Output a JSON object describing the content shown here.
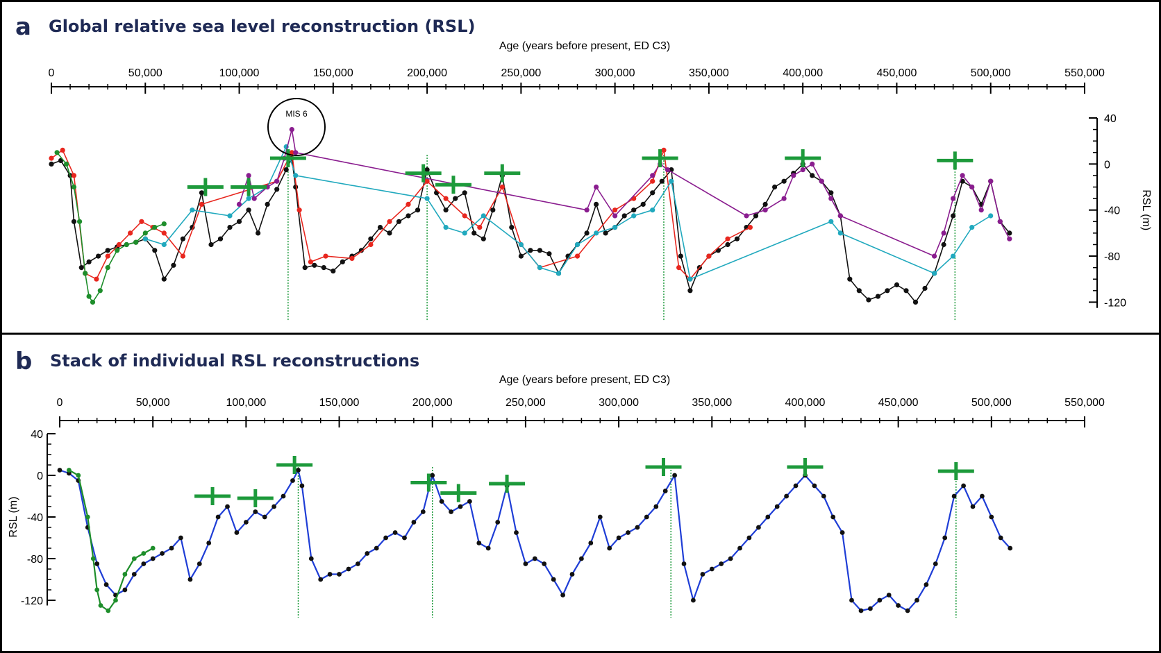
{
  "panels": {
    "a": {
      "letter": "a",
      "title": "Global relative sea level reconstruction (RSL)"
    },
    "b": {
      "letter": "b",
      "title": "Stack of individual RSL reconstructions"
    }
  },
  "colors": {
    "black": "#111111",
    "red": "#e8271f",
    "green": "#1e8e2b",
    "cyan": "#21a9be",
    "purple": "#8a1d8f",
    "blue": "#1f3ed6",
    "marker": "#1d9a3b",
    "title": "#1f2a55"
  },
  "chart_data": [
    {
      "type": "line",
      "title": "Global relative sea level reconstruction (RSL)",
      "xlabel": "Age (years before present, ED C3)",
      "ylabel": "RSL (m)",
      "xlim": [
        0,
        550000
      ],
      "ylim": [
        -130,
        40
      ],
      "x_ticks": [
        "0",
        "50,000",
        "100,000",
        "150,000",
        "200,000",
        "250,000",
        "300,000",
        "350,000",
        "400,000",
        "450,000",
        "500,000",
        "550,000"
      ],
      "y_ticks": [
        "40",
        "0",
        "-40",
        "-80",
        "-120"
      ],
      "annotation": "MIS 6",
      "x_axis_position": "top",
      "y_axis_position": "right",
      "series": [
        {
          "color": "black",
          "x": [
            0,
            5000,
            10000,
            12000,
            16000,
            20000,
            25000,
            30000,
            35000,
            40000,
            45000,
            50000,
            55000,
            60000,
            65000,
            70000,
            75000,
            80000,
            85000,
            90000,
            95000,
            100000,
            105000,
            110000,
            115000,
            120000,
            125000,
            128000,
            130000,
            135000,
            140000,
            145000,
            150000,
            155000,
            160000,
            165000,
            170000,
            175000,
            180000,
            185000,
            190000,
            195000,
            200000,
            205000,
            210000,
            215000,
            220000,
            225000,
            230000,
            235000,
            240000,
            245000,
            250000,
            255000,
            260000,
            265000,
            270000,
            275000,
            280000,
            285000,
            290000,
            295000,
            300000,
            305000,
            310000,
            315000,
            320000,
            325000,
            330000,
            335000,
            340000,
            345000,
            350000,
            355000,
            360000,
            365000,
            370000,
            375000,
            380000,
            385000,
            390000,
            395000,
            400000,
            405000,
            410000,
            415000,
            420000,
            425000,
            430000,
            435000,
            440000,
            445000,
            450000,
            455000,
            460000,
            465000,
            470000,
            475000,
            480000,
            485000,
            490000,
            495000,
            500000,
            505000,
            510000
          ],
          "y": [
            0,
            3,
            -10,
            -50,
            -90,
            -85,
            -80,
            -75,
            -72,
            -70,
            -68,
            -65,
            -75,
            -100,
            -88,
            -65,
            -55,
            -25,
            -70,
            -65,
            -55,
            -50,
            -40,
            -60,
            -35,
            -22,
            -5,
            5,
            -20,
            -90,
            -88,
            -90,
            -93,
            -85,
            -80,
            -75,
            -65,
            -55,
            -60,
            -50,
            -45,
            -40,
            -5,
            -25,
            -40,
            -30,
            -25,
            -60,
            -65,
            -40,
            -10,
            -55,
            -80,
            -75,
            -75,
            -78,
            -95,
            -80,
            -70,
            -60,
            -35,
            -60,
            -55,
            -45,
            -40,
            -35,
            -25,
            -15,
            -5,
            -80,
            -110,
            -90,
            -80,
            -75,
            -70,
            -65,
            -55,
            -45,
            -35,
            -20,
            -15,
            -8,
            0,
            -10,
            -15,
            -25,
            -45,
            -100,
            -110,
            -118,
            -115,
            -110,
            -105,
            -110,
            -120,
            -108,
            -95,
            -70,
            -45,
            -15,
            -20,
            -35,
            -15,
            -50,
            -60
          ]
        },
        {
          "color": "red",
          "x": [
            0,
            6000,
            12000,
            18000,
            24000,
            30000,
            36000,
            42000,
            48000,
            54000,
            60000,
            70000,
            80000,
            120000,
            128000,
            132000,
            138000,
            146000,
            160000,
            170000,
            180000,
            190000,
            200000,
            210000,
            220000,
            228000,
            240000,
            250000,
            260000,
            280000,
            300000,
            310000,
            320000,
            326000,
            334000,
            340000,
            350000,
            360000,
            372000
          ],
          "y": [
            5,
            12,
            -10,
            -95,
            -100,
            -80,
            -70,
            -60,
            -50,
            -55,
            -60,
            -80,
            -35,
            -15,
            10,
            -40,
            -85,
            -80,
            -82,
            -70,
            -50,
            -35,
            -15,
            -30,
            -45,
            -55,
            -20,
            -70,
            -90,
            -80,
            -40,
            -30,
            -15,
            12,
            -90,
            -100,
            -80,
            -65,
            -55
          ]
        },
        {
          "color": "green",
          "x": [
            3000,
            8000,
            12000,
            15000,
            18000,
            20000,
            22000,
            26000,
            30000,
            35000,
            40000,
            45000,
            50000,
            55000,
            60000
          ],
          "y": [
            10,
            0,
            -20,
            -50,
            -95,
            -115,
            -120,
            -110,
            -90,
            -75,
            -70,
            -68,
            -60,
            -55,
            -52
          ]
        },
        {
          "color": "cyan",
          "x": [
            50000,
            60000,
            75000,
            95000,
            105000,
            115000,
            125000,
            130000,
            200000,
            210000,
            220000,
            230000,
            250000,
            260000,
            270000,
            280000,
            290000,
            300000,
            310000,
            320000,
            330000,
            340000,
            415000,
            420000,
            470000,
            480000,
            490000,
            500000
          ],
          "y": [
            -65,
            -70,
            -40,
            -45,
            -30,
            -20,
            15,
            -10,
            -30,
            -55,
            -60,
            -45,
            -70,
            -90,
            -95,
            -70,
            -60,
            -55,
            -45,
            -40,
            -15,
            -100,
            -50,
            -60,
            -95,
            -80,
            -55,
            -45
          ]
        },
        {
          "color": "purple",
          "x": [
            100000,
            105000,
            108000,
            115000,
            120000,
            124000,
            128000,
            130000,
            285000,
            290000,
            300000,
            320000,
            324000,
            328000,
            370000,
            380000,
            390000,
            395000,
            400000,
            405000,
            410000,
            415000,
            420000,
            470000,
            475000,
            480000,
            485000,
            490000,
            495000,
            500000,
            505000,
            510000
          ],
          "y": [
            -35,
            -10,
            -30,
            -20,
            -15,
            5,
            30,
            10,
            -40,
            -20,
            -45,
            -10,
            0,
            -5,
            -45,
            -40,
            -30,
            -10,
            -5,
            0,
            -15,
            -30,
            -45,
            -80,
            -60,
            -30,
            -10,
            -20,
            -40,
            -15,
            -50,
            -65
          ]
        }
      ],
      "markers": [
        {
          "x": 82000,
          "y": -20
        },
        {
          "x": 105000,
          "y": -20
        },
        {
          "x": 126000,
          "y": 5
        },
        {
          "x": 198000,
          "y": -8
        },
        {
          "x": 214000,
          "y": -18
        },
        {
          "x": 240000,
          "y": -8
        },
        {
          "x": 324000,
          "y": 5
        },
        {
          "x": 400000,
          "y": 5
        },
        {
          "x": 481000,
          "y": 3
        }
      ],
      "termination_lines": [
        126000,
        200000,
        326000,
        481000
      ]
    },
    {
      "type": "line",
      "title": "Stack of individual RSL reconstructions",
      "xlabel": "Age (years before present, ED C3)",
      "ylabel": "RSL (m)",
      "xlim": [
        0,
        550000
      ],
      "ylim": [
        -130,
        40
      ],
      "x_ticks": [
        "0",
        "50,000",
        "100,000",
        "150,000",
        "200,000",
        "250,000",
        "300,000",
        "350,000",
        "400,000",
        "450,000",
        "500,000",
        "550,000"
      ],
      "y_ticks": [
        "40",
        "0",
        "-40",
        "-80",
        "-120"
      ],
      "x_axis_position": "top",
      "y_axis_position": "left",
      "series": [
        {
          "color": "blue",
          "x": [
            0,
            5000,
            10000,
            15000,
            20000,
            25000,
            30000,
            35000,
            40000,
            45000,
            50000,
            55000,
            60000,
            65000,
            70000,
            75000,
            80000,
            85000,
            90000,
            95000,
            100000,
            105000,
            110000,
            115000,
            120000,
            125000,
            128000,
            130000,
            135000,
            140000,
            145000,
            150000,
            155000,
            160000,
            165000,
            170000,
            175000,
            180000,
            185000,
            190000,
            195000,
            200000,
            205000,
            210000,
            215000,
            220000,
            225000,
            230000,
            235000,
            240000,
            245000,
            250000,
            255000,
            260000,
            265000,
            270000,
            275000,
            280000,
            285000,
            290000,
            295000,
            300000,
            305000,
            310000,
            315000,
            320000,
            325000,
            330000,
            335000,
            340000,
            345000,
            350000,
            355000,
            360000,
            365000,
            370000,
            375000,
            380000,
            385000,
            390000,
            395000,
            400000,
            405000,
            410000,
            415000,
            420000,
            425000,
            430000,
            435000,
            440000,
            445000,
            450000,
            455000,
            460000,
            465000,
            470000,
            475000,
            480000,
            485000,
            490000,
            495000,
            500000,
            505000,
            510000
          ],
          "y": [
            5,
            2,
            -5,
            -50,
            -85,
            -105,
            -115,
            -110,
            -95,
            -85,
            -80,
            -75,
            -70,
            -60,
            -100,
            -85,
            -65,
            -40,
            -30,
            -55,
            -45,
            -35,
            -40,
            -30,
            -20,
            -5,
            5,
            -10,
            -80,
            -100,
            -95,
            -95,
            -90,
            -85,
            -75,
            -70,
            -60,
            -55,
            -60,
            -45,
            -35,
            0,
            -25,
            -35,
            -30,
            -25,
            -65,
            -70,
            -45,
            -10,
            -55,
            -85,
            -80,
            -85,
            -100,
            -115,
            -95,
            -80,
            -65,
            -40,
            -70,
            -60,
            -55,
            -50,
            -40,
            -30,
            -15,
            0,
            -85,
            -120,
            -95,
            -90,
            -85,
            -80,
            -70,
            -60,
            -50,
            -40,
            -30,
            -20,
            -10,
            0,
            -10,
            -20,
            -40,
            -55,
            -120,
            -130,
            -128,
            -120,
            -115,
            -125,
            -130,
            -120,
            -105,
            -85,
            -60,
            -20,
            -10,
            -30,
            -20,
            -40,
            -60,
            -70
          ]
        },
        {
          "color": "green",
          "x": [
            5000,
            10000,
            15000,
            18000,
            20000,
            22000,
            26000,
            30000,
            35000,
            40000,
            45000,
            50000
          ],
          "y": [
            5,
            0,
            -40,
            -80,
            -110,
            -125,
            -130,
            -120,
            -95,
            -80,
            -75,
            -70
          ]
        }
      ],
      "markers": [
        {
          "x": 82000,
          "y": -20
        },
        {
          "x": 105000,
          "y": -22
        },
        {
          "x": 126000,
          "y": 10
        },
        {
          "x": 198000,
          "y": -7
        },
        {
          "x": 214000,
          "y": -17
        },
        {
          "x": 240000,
          "y": -8
        },
        {
          "x": 324000,
          "y": 8
        },
        {
          "x": 400000,
          "y": 8
        },
        {
          "x": 481000,
          "y": 4
        }
      ],
      "termination_lines": [
        128000,
        200000,
        328000,
        481000
      ]
    }
  ]
}
